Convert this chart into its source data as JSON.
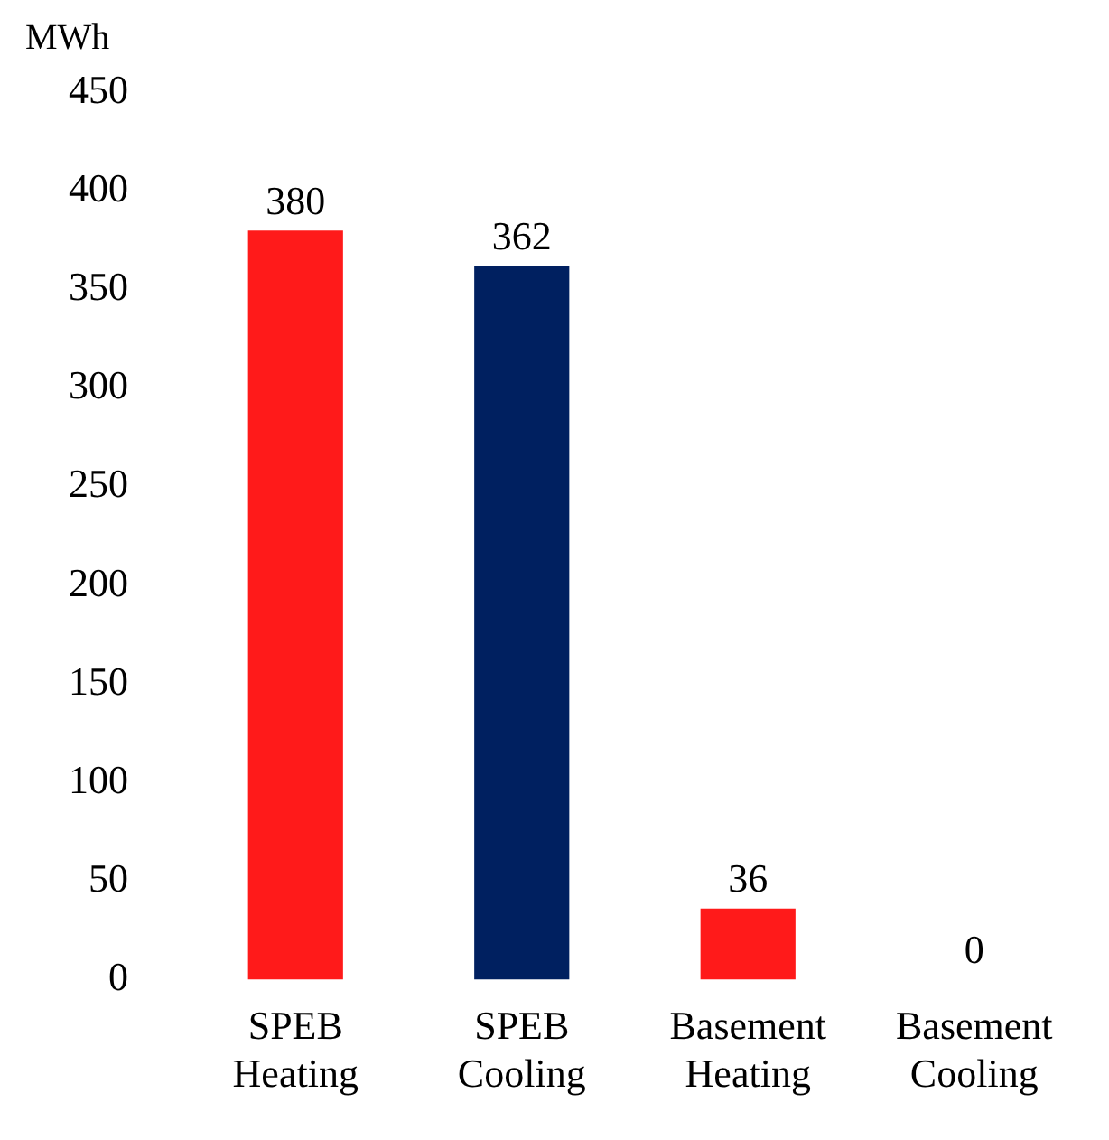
{
  "chart_data": {
    "type": "bar",
    "ylabel": "MWh",
    "categories": [
      "SPEB Heating",
      "SPEB Cooling",
      "Basement Heating",
      "Basement Cooling"
    ],
    "values": [
      380,
      362,
      36,
      0
    ],
    "colors": [
      "#ff1a1a",
      "#002060",
      "#ff1a1a",
      "#002060"
    ],
    "ylim": [
      0,
      450
    ],
    "yticks": [
      0,
      50,
      100,
      150,
      200,
      250,
      300,
      350,
      400,
      450
    ],
    "data_labels": true,
    "grid": false,
    "legend": false
  }
}
